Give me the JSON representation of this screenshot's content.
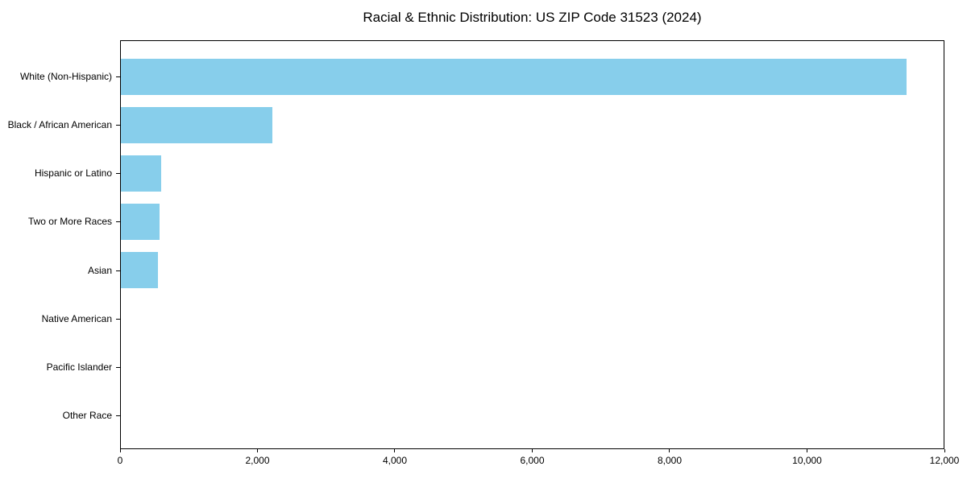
{
  "chart_data": {
    "type": "bar",
    "orientation": "horizontal",
    "title": "Racial & Ethnic Distribution: US ZIP Code 31523 (2024)",
    "categories": [
      "White (Non-Hispanic)",
      "Black / African American",
      "Hispanic or Latino",
      "Two or More Races",
      "Asian",
      "Native American",
      "Pacific Islander",
      "Other Race"
    ],
    "values": [
      11460,
      2210,
      590,
      560,
      540,
      0,
      0,
      0
    ],
    "xlabel": "",
    "ylabel": "",
    "xlim": [
      0,
      12000
    ],
    "x_tick_values": [
      0,
      2000,
      4000,
      6000,
      8000,
      10000,
      12000
    ],
    "x_tick_labels": [
      "0",
      "2,000",
      "4,000",
      "6,000",
      "8,000",
      "10,000",
      "12,000"
    ],
    "grid": false,
    "legend": null,
    "colors": {
      "bar": "#87CEEB",
      "axis": "#000000",
      "background": "#ffffff"
    }
  }
}
